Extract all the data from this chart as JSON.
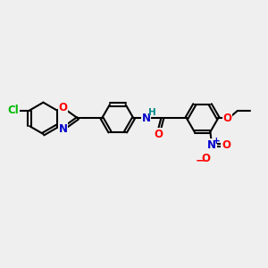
{
  "bg_color": "#efefef",
  "bond_color": "#000000",
  "bond_width": 1.5,
  "atom_colors": {
    "C": "#000000",
    "N": "#0000cc",
    "O": "#ff0000",
    "Cl": "#00bb00",
    "H": "#008888"
  },
  "font_size": 8.5
}
